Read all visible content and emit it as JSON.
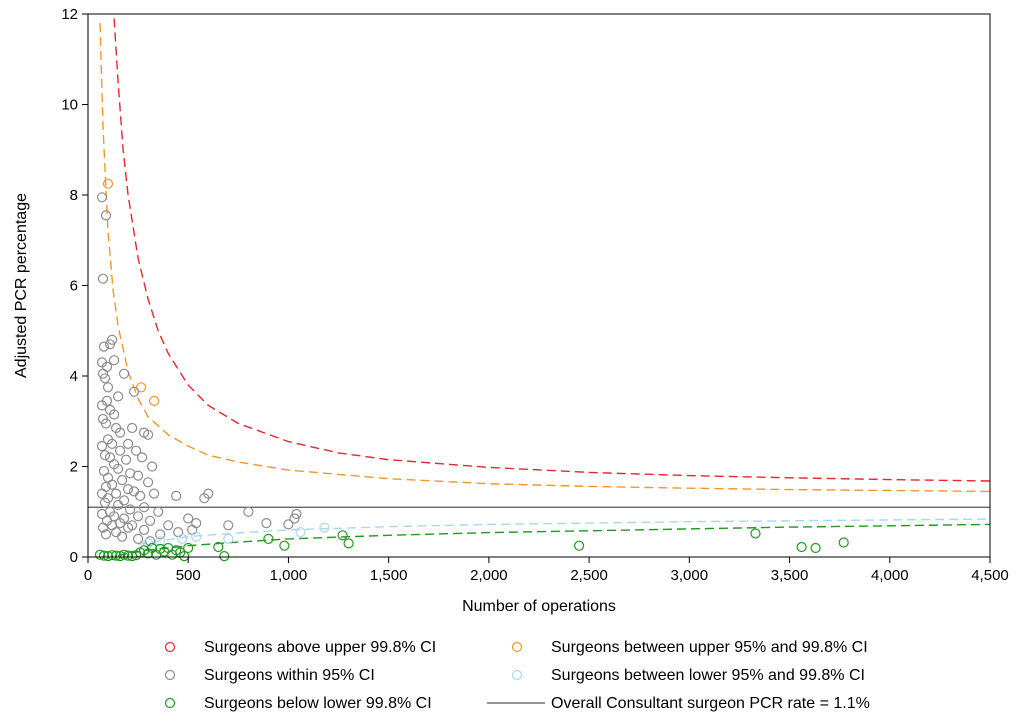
{
  "chart_data": {
    "type": "scatter",
    "xlabel": "Number of operations",
    "ylabel": "Adjusted PCR percentage",
    "xlim": [
      0,
      4500
    ],
    "ylim": [
      0,
      12
    ],
    "x_ticks": [
      0,
      500,
      1000,
      1500,
      2000,
      2500,
      3000,
      3500,
      4000,
      4500
    ],
    "x_tick_labels": [
      "0",
      "500",
      "1,000",
      "1,500",
      "2,000",
      "2,500",
      "3,000",
      "3,500",
      "4,000",
      "4,500"
    ],
    "y_ticks": [
      0,
      2,
      4,
      6,
      8,
      10,
      12
    ],
    "y_tick_labels": [
      "0",
      "2",
      "4",
      "6",
      "8",
      "10",
      "12"
    ],
    "grid": false,
    "legend_position": "bottom",
    "overall_rate": 1.1,
    "colors": {
      "above_998": "#e8262f",
      "upper_95_998": "#f5962a",
      "within_95": "#8c8c8c",
      "lower_95_998": "#a9d8ea",
      "below_998": "#1e9a1e",
      "overall": "#555555"
    },
    "legend": [
      {
        "key": "above_998",
        "label": "Surgeons above upper 99.8% CI",
        "symbol": "circle"
      },
      {
        "key": "upper_95_998",
        "label": "Surgeons between upper 95% and 99.8% CI",
        "symbol": "circle"
      },
      {
        "key": "within_95",
        "label": "Surgeons within 95% CI",
        "symbol": "circle"
      },
      {
        "key": "lower_95_998",
        "label": "Surgeons between lower 95% and 99.8% CI",
        "symbol": "circle"
      },
      {
        "key": "below_998",
        "label": "Surgeons below lower 99.8% CI",
        "symbol": "circle"
      },
      {
        "key": "overall",
        "label": "Overall Consultant surgeon PCR rate = 1.1%",
        "symbol": "line"
      }
    ],
    "control_limits": [
      {
        "key": "above_998",
        "style": "dashed",
        "points": [
          [
            130,
            11.9
          ],
          [
            150,
            10.5
          ],
          [
            175,
            9.0
          ],
          [
            200,
            8.0
          ],
          [
            250,
            6.6
          ],
          [
            300,
            5.7
          ],
          [
            350,
            5.0
          ],
          [
            400,
            4.5
          ],
          [
            500,
            3.8
          ],
          [
            600,
            3.35
          ],
          [
            750,
            2.95
          ],
          [
            1000,
            2.55
          ],
          [
            1250,
            2.3
          ],
          [
            1500,
            2.15
          ],
          [
            2000,
            1.98
          ],
          [
            2500,
            1.87
          ],
          [
            3000,
            1.8
          ],
          [
            3500,
            1.75
          ],
          [
            4000,
            1.71
          ],
          [
            4500,
            1.68
          ]
        ]
      },
      {
        "key": "upper_95_998",
        "style": "dashed",
        "points": [
          [
            60,
            11.8
          ],
          [
            75,
            9.5
          ],
          [
            100,
            7.2
          ],
          [
            125,
            5.9
          ],
          [
            150,
            5.1
          ],
          [
            200,
            4.1
          ],
          [
            250,
            3.5
          ],
          [
            300,
            3.1
          ],
          [
            400,
            2.7
          ],
          [
            500,
            2.45
          ],
          [
            600,
            2.25
          ],
          [
            750,
            2.1
          ],
          [
            1000,
            1.92
          ],
          [
            1500,
            1.73
          ],
          [
            2000,
            1.62
          ],
          [
            2500,
            1.56
          ],
          [
            3000,
            1.52
          ],
          [
            3500,
            1.49
          ],
          [
            4000,
            1.47
          ],
          [
            4500,
            1.45
          ]
        ]
      },
      {
        "key": "lower_95_998",
        "style": "dashed",
        "points": [
          [
            250,
            0.28
          ],
          [
            500,
            0.45
          ],
          [
            750,
            0.53
          ],
          [
            1000,
            0.6
          ],
          [
            1500,
            0.67
          ],
          [
            2000,
            0.72
          ],
          [
            2500,
            0.75
          ],
          [
            3000,
            0.78
          ],
          [
            3500,
            0.8
          ],
          [
            4000,
            0.82
          ],
          [
            4500,
            0.84
          ]
        ]
      },
      {
        "key": "below_998",
        "style": "dashed",
        "points": [
          [
            150,
            0.03
          ],
          [
            200,
            0.08
          ],
          [
            300,
            0.15
          ],
          [
            400,
            0.2
          ],
          [
            500,
            0.25
          ],
          [
            750,
            0.33
          ],
          [
            1000,
            0.4
          ],
          [
            1500,
            0.48
          ],
          [
            2000,
            0.54
          ],
          [
            2500,
            0.58
          ],
          [
            3000,
            0.62
          ],
          [
            3500,
            0.66
          ],
          [
            4000,
            0.69
          ],
          [
            4500,
            0.72
          ]
        ]
      }
    ],
    "series": [
      {
        "key": "upper_95_998",
        "points": [
          [
            100,
            8.25
          ],
          [
            265,
            3.75
          ],
          [
            330,
            3.45
          ]
        ]
      },
      {
        "key": "within_95",
        "points": [
          [
            70,
            7.95
          ],
          [
            90,
            7.55
          ],
          [
            75,
            6.15
          ],
          [
            120,
            4.8
          ],
          [
            110,
            4.7
          ],
          [
            80,
            4.65
          ],
          [
            130,
            4.35
          ],
          [
            70,
            4.3
          ],
          [
            95,
            4.2
          ],
          [
            75,
            4.05
          ],
          [
            85,
            3.95
          ],
          [
            180,
            4.05
          ],
          [
            100,
            3.75
          ],
          [
            230,
            3.65
          ],
          [
            150,
            3.55
          ],
          [
            95,
            3.45
          ],
          [
            70,
            3.35
          ],
          [
            110,
            3.25
          ],
          [
            130,
            3.15
          ],
          [
            75,
            3.05
          ],
          [
            90,
            2.95
          ],
          [
            140,
            2.85
          ],
          [
            160,
            2.75
          ],
          [
            220,
            2.85
          ],
          [
            280,
            2.75
          ],
          [
            300,
            2.7
          ],
          [
            100,
            2.6
          ],
          [
            120,
            2.5
          ],
          [
            200,
            2.5
          ],
          [
            70,
            2.45
          ],
          [
            160,
            2.35
          ],
          [
            240,
            2.35
          ],
          [
            85,
            2.25
          ],
          [
            110,
            2.2
          ],
          [
            190,
            2.15
          ],
          [
            270,
            2.2
          ],
          [
            320,
            2.0
          ],
          [
            130,
            2.05
          ],
          [
            150,
            1.95
          ],
          [
            80,
            1.9
          ],
          [
            210,
            1.85
          ],
          [
            250,
            1.8
          ],
          [
            100,
            1.75
          ],
          [
            170,
            1.7
          ],
          [
            300,
            1.65
          ],
          [
            120,
            1.6
          ],
          [
            90,
            1.55
          ],
          [
            200,
            1.5
          ],
          [
            230,
            1.45
          ],
          [
            70,
            1.4
          ],
          [
            140,
            1.4
          ],
          [
            330,
            1.4
          ],
          [
            260,
            1.35
          ],
          [
            100,
            1.3
          ],
          [
            180,
            1.25
          ],
          [
            440,
            1.35
          ],
          [
            600,
            1.4
          ],
          [
            580,
            1.3
          ],
          [
            85,
            1.2
          ],
          [
            150,
            1.15
          ],
          [
            280,
            1.1
          ],
          [
            210,
            1.05
          ],
          [
            110,
            1.0
          ],
          [
            350,
            1.0
          ],
          [
            800,
            1.0
          ],
          [
            1040,
            0.95
          ],
          [
            70,
            0.95
          ],
          [
            130,
            0.9
          ],
          [
            250,
            0.9
          ],
          [
            180,
            0.85
          ],
          [
            500,
            0.85
          ],
          [
            1030,
            0.85
          ],
          [
            95,
            0.8
          ],
          [
            160,
            0.75
          ],
          [
            310,
            0.8
          ],
          [
            540,
            0.75
          ],
          [
            890,
            0.75
          ],
          [
            120,
            0.7
          ],
          [
            220,
            0.7
          ],
          [
            400,
            0.7
          ],
          [
            700,
            0.7
          ],
          [
            1000,
            0.72
          ],
          [
            75,
            0.65
          ],
          [
            200,
            0.65
          ],
          [
            280,
            0.6
          ],
          [
            450,
            0.55
          ],
          [
            140,
            0.55
          ],
          [
            360,
            0.5
          ],
          [
            90,
            0.5
          ],
          [
            170,
            0.45
          ],
          [
            520,
            0.6
          ],
          [
            250,
            0.4
          ],
          [
            310,
            0.35
          ]
        ]
      },
      {
        "key": "lower_95_998",
        "points": [
          [
            300,
            0.3
          ],
          [
            360,
            0.35
          ],
          [
            470,
            0.4
          ],
          [
            540,
            0.45
          ],
          [
            700,
            0.4
          ],
          [
            1060,
            0.55
          ],
          [
            1180,
            0.65
          ]
        ]
      },
      {
        "key": "below_998",
        "points": [
          [
            60,
            0.05
          ],
          [
            80,
            0.03
          ],
          [
            100,
            0.02
          ],
          [
            120,
            0.04
          ],
          [
            140,
            0.03
          ],
          [
            160,
            0.02
          ],
          [
            180,
            0.05
          ],
          [
            200,
            0.03
          ],
          [
            220,
            0.02
          ],
          [
            240,
            0.04
          ],
          [
            260,
            0.1
          ],
          [
            280,
            0.15
          ],
          [
            300,
            0.08
          ],
          [
            320,
            0.2
          ],
          [
            340,
            0.05
          ],
          [
            360,
            0.18
          ],
          [
            380,
            0.12
          ],
          [
            400,
            0.2
          ],
          [
            420,
            0.05
          ],
          [
            440,
            0.15
          ],
          [
            460,
            0.1
          ],
          [
            480,
            0.02
          ],
          [
            500,
            0.2
          ],
          [
            650,
            0.22
          ],
          [
            680,
            0.02
          ],
          [
            900,
            0.4
          ],
          [
            980,
            0.25
          ],
          [
            1270,
            0.48
          ],
          [
            1300,
            0.3
          ],
          [
            2450,
            0.25
          ],
          [
            3330,
            0.52
          ],
          [
            3560,
            0.22
          ],
          [
            3630,
            0.2
          ],
          [
            3770,
            0.32
          ]
        ]
      }
    ]
  }
}
